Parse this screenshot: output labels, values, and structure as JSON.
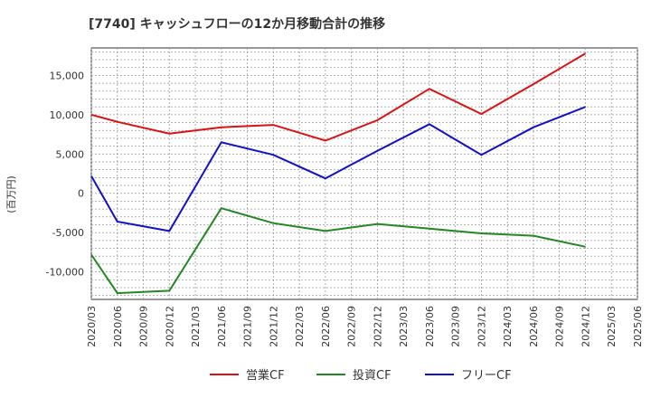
{
  "chart_data": {
    "type": "line",
    "title": "[7740]  キャッシュフローの12か月移動合計の推移",
    "ylabel": "(百万円)",
    "xlabel": "",
    "ylim": [
      -13500,
      18500
    ],
    "yticks": [
      15000,
      10000,
      5000,
      0,
      -5000,
      -10000
    ],
    "ytick_labels": [
      "15,000",
      "10,000",
      "5,000",
      "0",
      "-5,000",
      "-10,000"
    ],
    "categories": [
      "2020/03",
      "2020/06",
      "2020/09",
      "2020/12",
      "2021/03",
      "2021/06",
      "2021/09",
      "2021/12",
      "2022/03",
      "2022/06",
      "2022/09",
      "2022/12",
      "2023/03",
      "2023/06",
      "2023/09",
      "2023/12",
      "2024/03",
      "2024/06",
      "2024/09",
      "2024/12",
      "2025/03",
      "2025/06"
    ],
    "grid": true,
    "legend_position": "bottom",
    "series": [
      {
        "name": "営業CF",
        "color": "#dd1111",
        "points": [
          [
            0,
            10000
          ],
          [
            1,
            9100
          ],
          [
            3,
            7600
          ],
          [
            5,
            8400
          ],
          [
            7,
            8700
          ],
          [
            9,
            6700
          ],
          [
            11,
            9300
          ],
          [
            13,
            13300
          ],
          [
            15,
            10100
          ],
          [
            17,
            13900
          ],
          [
            19,
            17800
          ]
        ]
      },
      {
        "name": "投資CF",
        "color": "#228822",
        "points": [
          [
            0,
            -7800
          ],
          [
            1,
            -12700
          ],
          [
            3,
            -12400
          ],
          [
            5,
            -1900
          ],
          [
            7,
            -3800
          ],
          [
            9,
            -4800
          ],
          [
            11,
            -3900
          ],
          [
            13,
            -4500
          ],
          [
            15,
            -5100
          ],
          [
            17,
            -5400
          ],
          [
            19,
            -6800
          ]
        ]
      },
      {
        "name": "フリーCF",
        "color": "#1111cc",
        "points": [
          [
            0,
            2200
          ],
          [
            1,
            -3600
          ],
          [
            3,
            -4800
          ],
          [
            5,
            6500
          ],
          [
            7,
            4900
          ],
          [
            9,
            1900
          ],
          [
            11,
            5400
          ],
          [
            13,
            8800
          ],
          [
            15,
            4900
          ],
          [
            17,
            8400
          ],
          [
            19,
            11000
          ]
        ]
      }
    ]
  }
}
